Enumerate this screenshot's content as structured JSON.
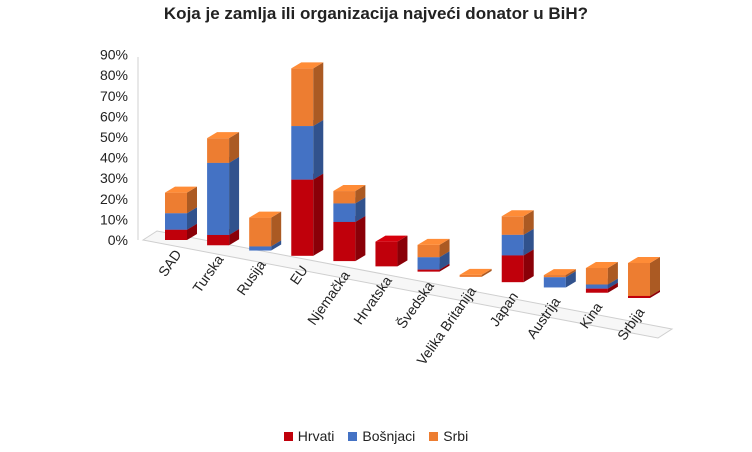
{
  "chart_data": {
    "type": "bar",
    "stacked": true,
    "three_d": true,
    "title": "Koja je zamlja ili organizacija najveći donator u BiH?",
    "xlabel": "",
    "ylabel": "",
    "ylim": [
      0,
      90
    ],
    "ytick_labels": [
      "0%",
      "10%",
      "20%",
      "30%",
      "40%",
      "50%",
      "60%",
      "70%",
      "80%",
      "90%"
    ],
    "legend_position": "bottom",
    "grid": false,
    "categories": [
      "SAD",
      "Turska",
      "Rusija",
      "EU",
      "Njemačka",
      "Hrvatska",
      "Švedska",
      "Velika Britanija",
      "Japan",
      "Austrija",
      "Kina",
      "Srbija"
    ],
    "series": [
      {
        "name": "Hrvati",
        "color": "#c0000b",
        "values": [
          5,
          5,
          0,
          37,
          19,
          12,
          1,
          0,
          13,
          0,
          2,
          1
        ]
      },
      {
        "name": "Bošnjaci",
        "color": "#4472c4",
        "values": [
          8,
          35,
          2,
          26,
          9,
          0,
          6,
          0,
          10,
          5,
          2,
          0
        ]
      },
      {
        "name": "Srbi",
        "color": "#ed7d31",
        "values": [
          10,
          12,
          14,
          28,
          6,
          0,
          6,
          1,
          9,
          1,
          8,
          16
        ]
      }
    ]
  }
}
